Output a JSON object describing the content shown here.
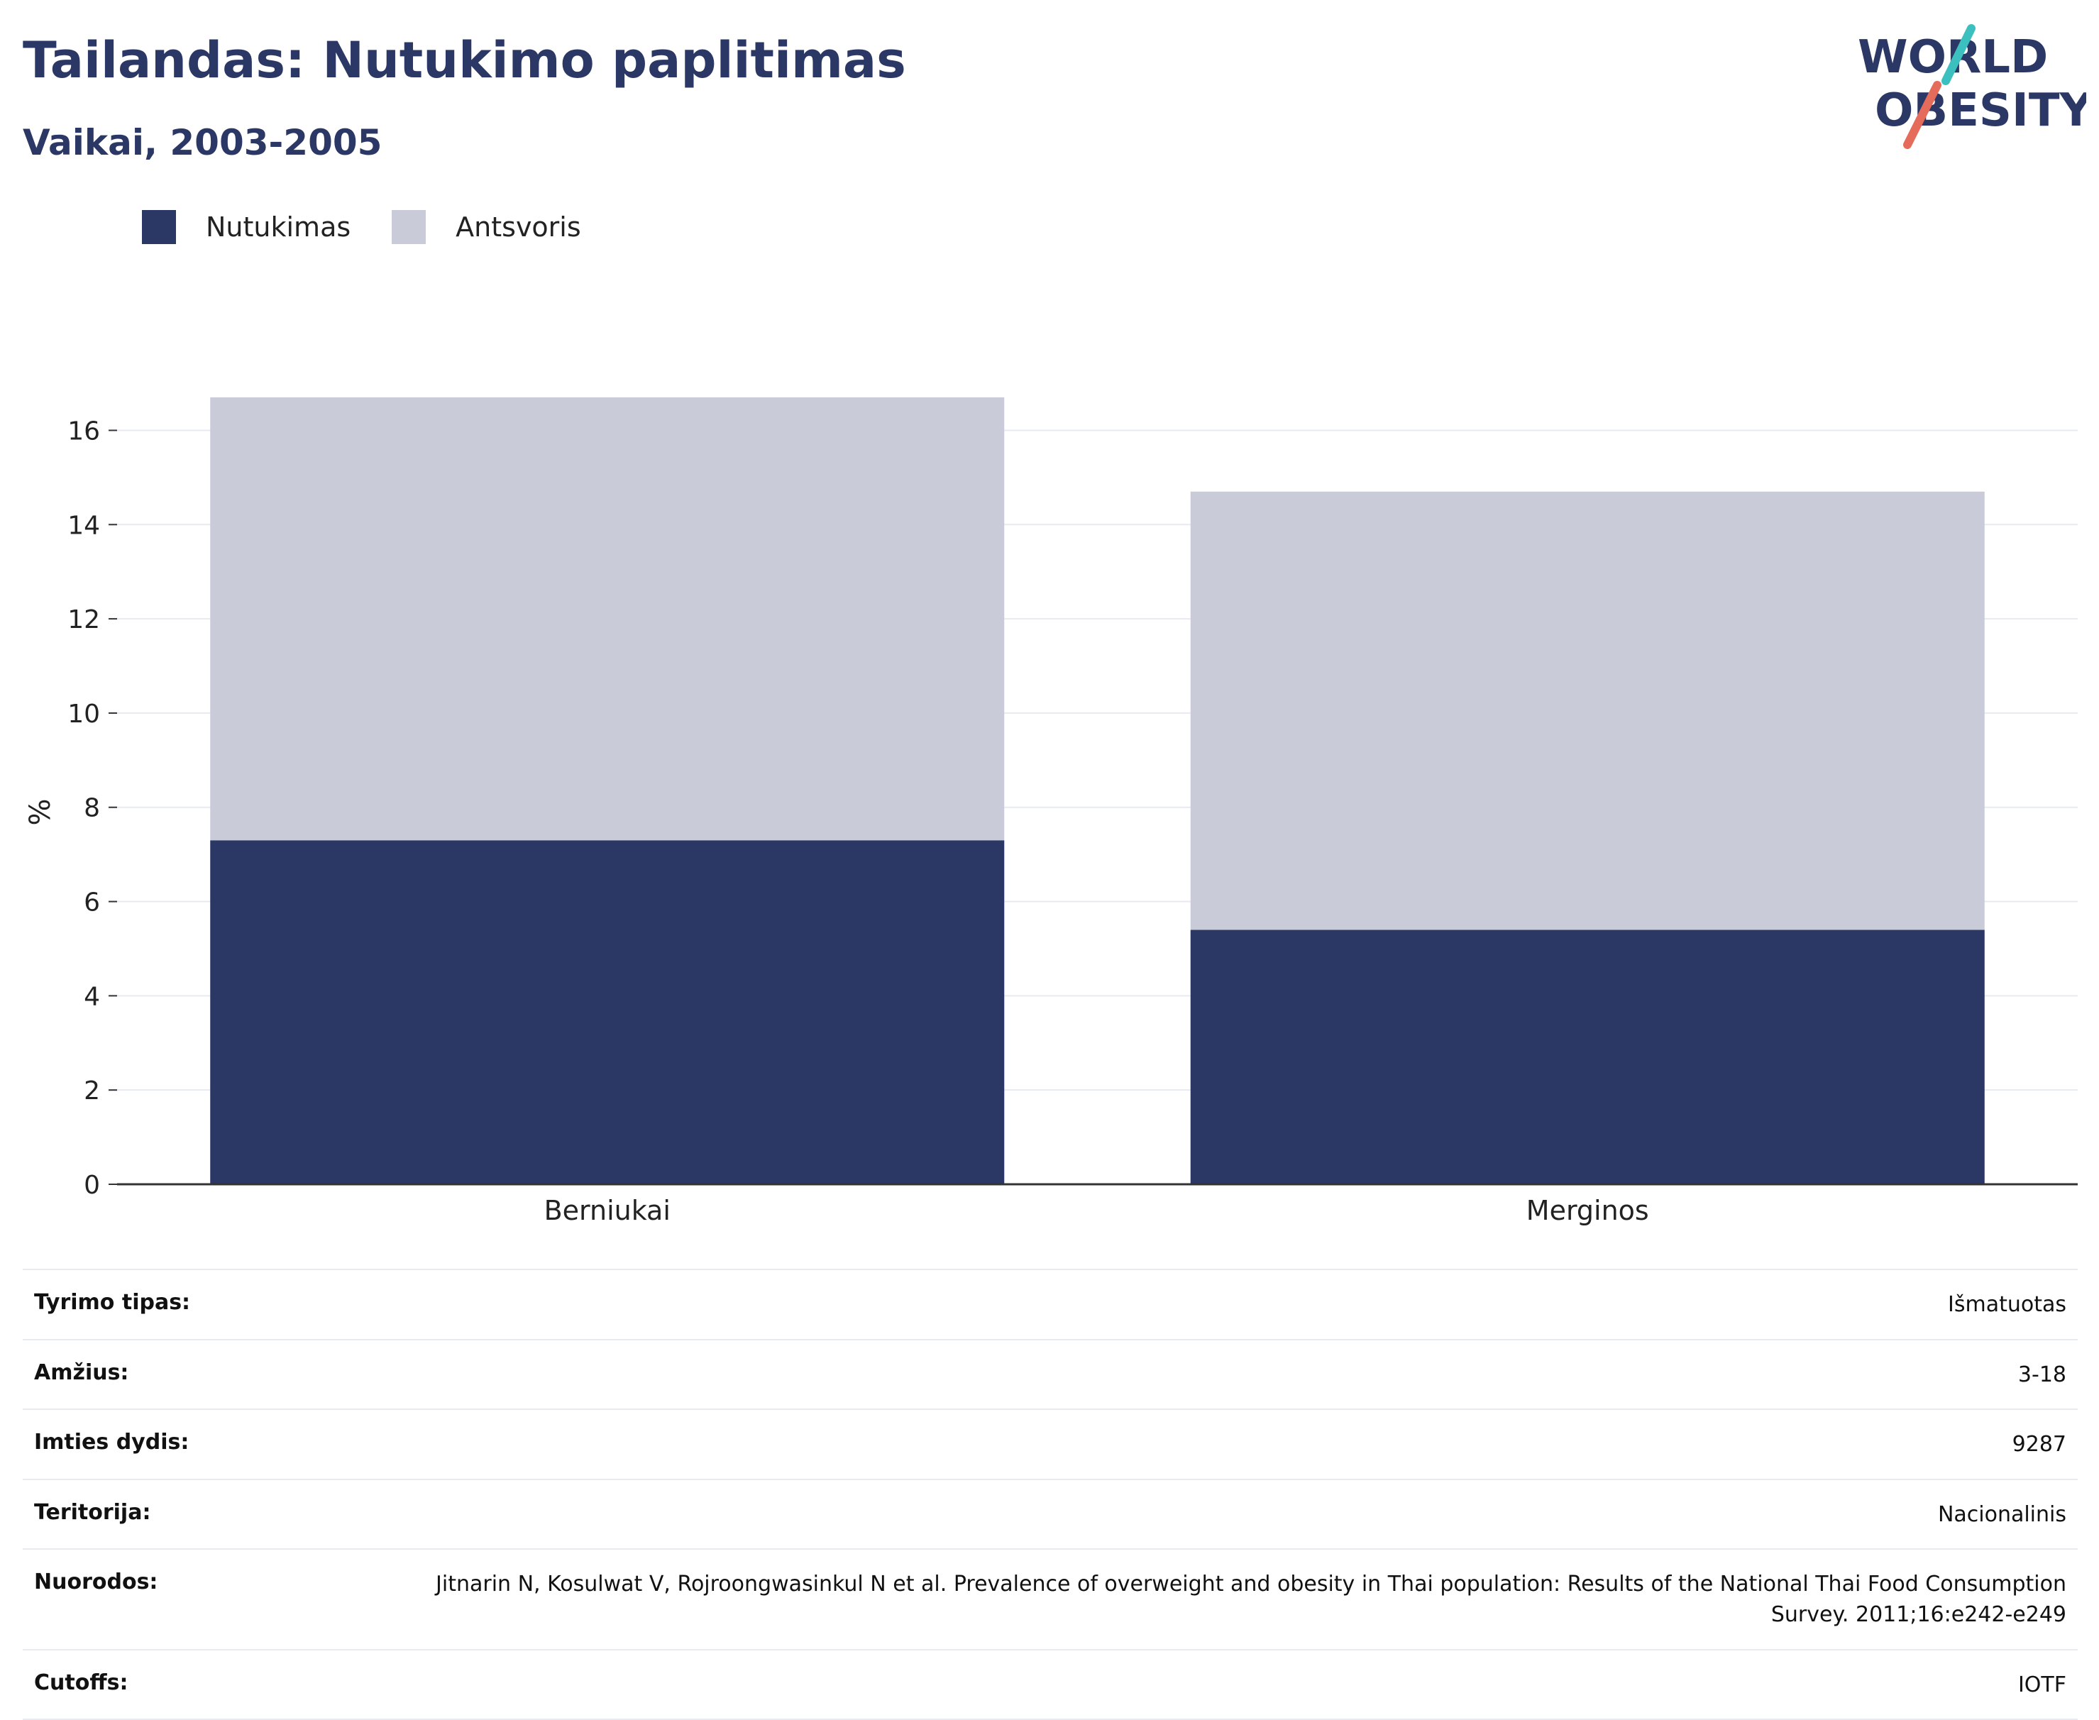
{
  "header": {
    "title": "Tailandas: Nutukimo paplitimas",
    "subtitle": "Vaikai, 2003-2005"
  },
  "logo": {
    "line1": "WORLD",
    "line2": "OBESITY"
  },
  "colors": {
    "obesity": "#2b3764",
    "overweight": "#c9ccd8",
    "accent_teal": "#3cbfbf",
    "accent_red": "#e56b5a",
    "grid": "#e8eaf1"
  },
  "chart_data": {
    "type": "bar",
    "stacked": true,
    "categories": [
      "Berniukai",
      "Merginos"
    ],
    "series": [
      {
        "name": "Nutukimas",
        "values": [
          7.3,
          5.4
        ]
      },
      {
        "name": "Antsvoris",
        "values": [
          9.4,
          9.3
        ]
      }
    ],
    "ylabel": "%",
    "ylim": [
      0,
      16.7
    ],
    "yticks": [
      0,
      2,
      4,
      6,
      8,
      10,
      12,
      14,
      16
    ],
    "legend": "top-left",
    "grid": true
  },
  "info": [
    {
      "label": "Tyrimo tipas:",
      "value": "Išmatuotas"
    },
    {
      "label": "Amžius:",
      "value": "3-18"
    },
    {
      "label": "Imties dydis:",
      "value": "9287"
    },
    {
      "label": "Teritorija:",
      "value": "Nacionalinis"
    },
    {
      "label": "Nuorodos:",
      "value": "Jitnarin N, Kosulwat V, Rojroongwasinkul N et al. Prevalence of overweight and obesity in Thai population: Results of the National Thai Food Consumption Survey. 2011;16:e242-e249"
    },
    {
      "label": "Cutoffs:",
      "value": "IOTF"
    }
  ]
}
